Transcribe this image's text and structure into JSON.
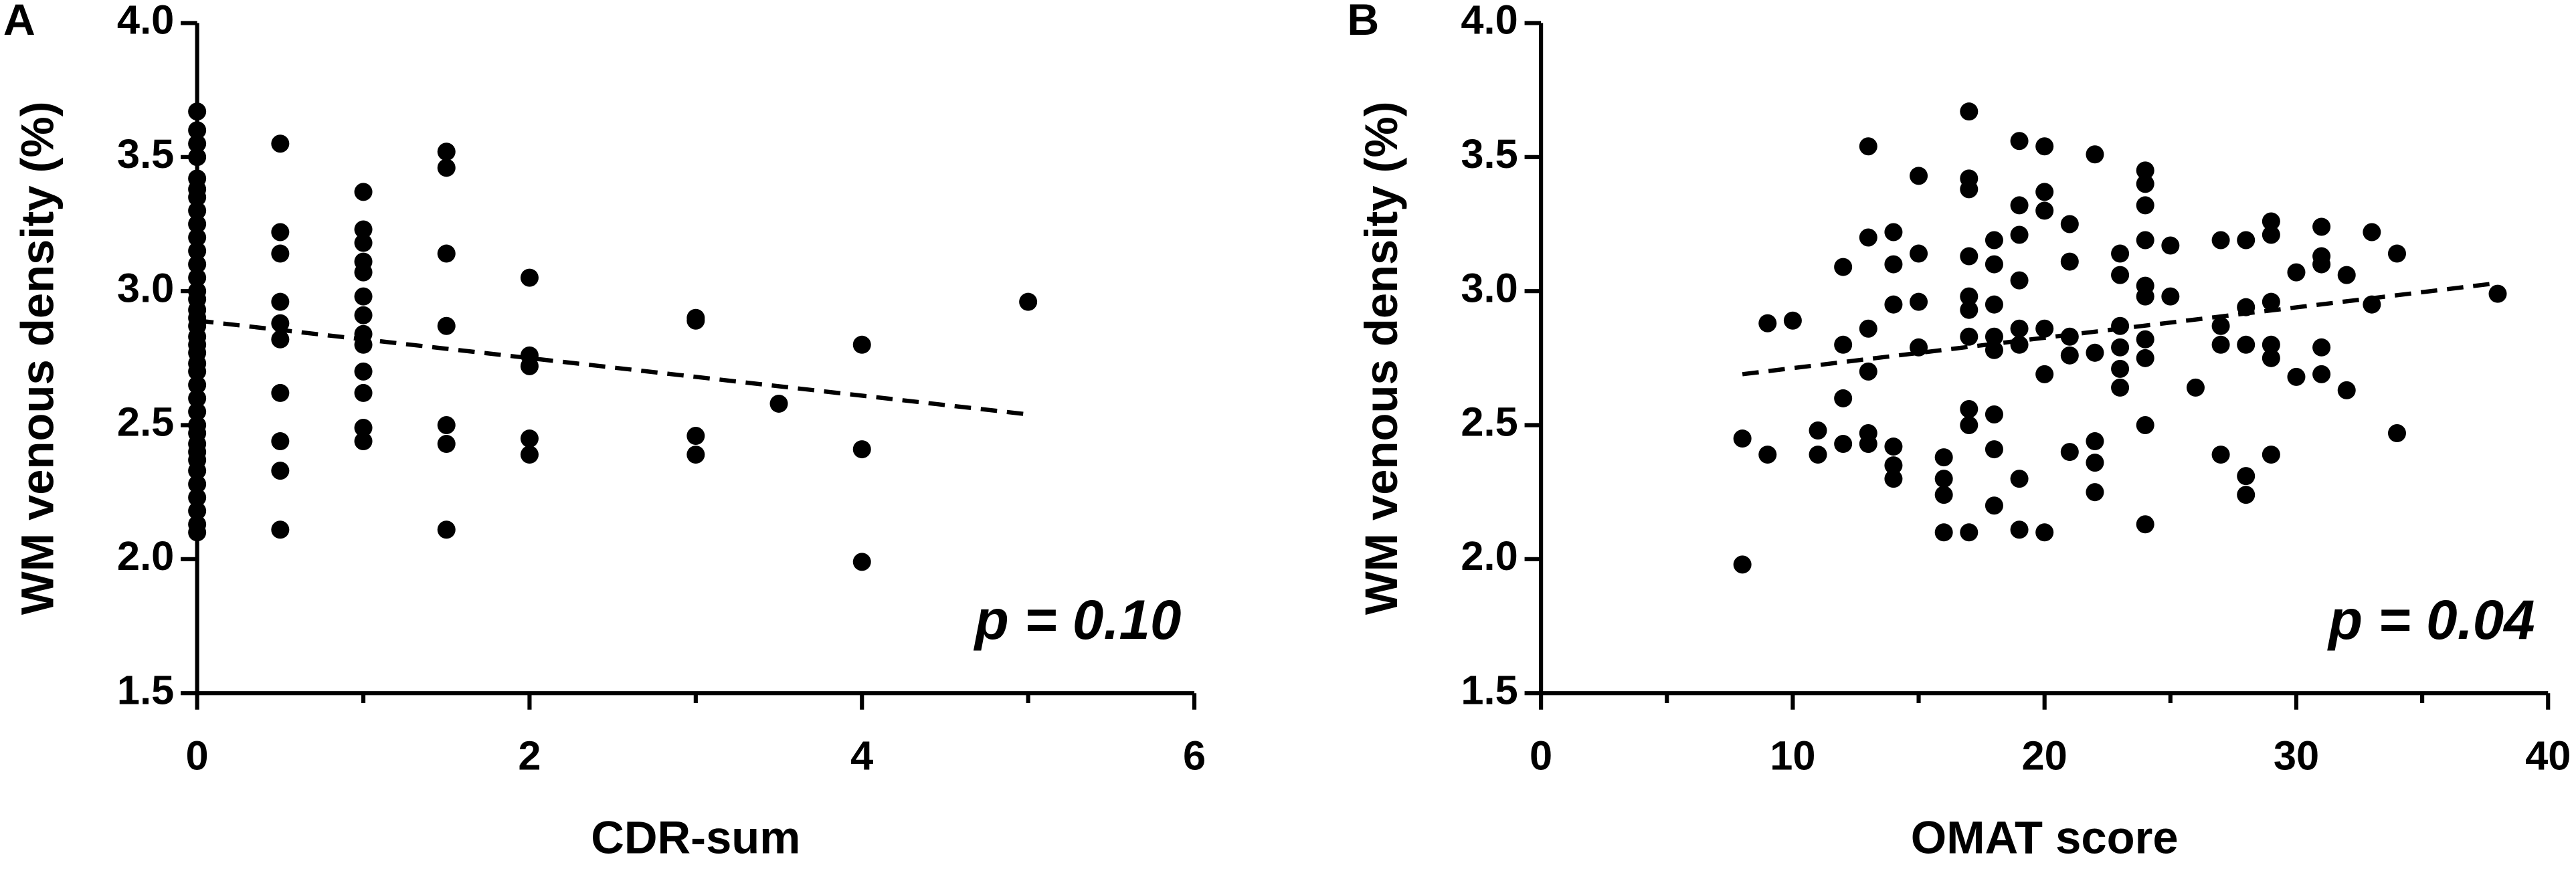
{
  "chart_data": [
    {
      "type": "scatter",
      "panel_label": "A",
      "x_label": "CDR-sum",
      "y_label": "WM venous density (%)",
      "annotation": "p = 0.10",
      "color": "#000000",
      "trendline_style": "dashed",
      "xlim": [
        0,
        6
      ],
      "xticks": [
        0,
        2,
        4,
        6
      ],
      "xminor_ticks": [
        1,
        3,
        5
      ],
      "ylim": [
        1.5,
        4
      ],
      "yticks": [
        1.5,
        {
          "value": 2,
          "label": "2.0"
        },
        2.5,
        {
          "value": 3,
          "label": "3.0"
        },
        3.5,
        {
          "value": 4,
          "label": "4.0"
        }
      ],
      "x": [
        0,
        0,
        0,
        0,
        0,
        0,
        0,
        0,
        0,
        0,
        0,
        0,
        0,
        0,
        0,
        0,
        0,
        0,
        0,
        0,
        0,
        0,
        0,
        0,
        0,
        0,
        0,
        0,
        0,
        0,
        0,
        0,
        0,
        0,
        0,
        0,
        0,
        0.5,
        0.5,
        0.5,
        0.5,
        0.5,
        0.5,
        0.5,
        0.5,
        0.5,
        0.5,
        1,
        1,
        1,
        1,
        1,
        1,
        1,
        1,
        1,
        1,
        1,
        1,
        1,
        1.5,
        1.5,
        1.5,
        1.5,
        1.5,
        1.5,
        1.5,
        2,
        2,
        2,
        2,
        2,
        3,
        3,
        3,
        3,
        3.5,
        4,
        4,
        4,
        5
      ],
      "values": [
        3.67,
        3.6,
        3.55,
        3.5,
        3.42,
        3.38,
        3.35,
        3.3,
        3.25,
        3.2,
        3.15,
        3.1,
        3.05,
        3.0,
        2.97,
        2.93,
        2.9,
        2.87,
        2.83,
        2.8,
        2.77,
        2.73,
        2.7,
        2.65,
        2.6,
        2.55,
        2.5,
        2.47,
        2.43,
        2.4,
        2.37,
        2.33,
        2.28,
        2.23,
        2.18,
        2.13,
        2.1,
        3.55,
        3.22,
        3.14,
        2.96,
        2.88,
        2.82,
        2.62,
        2.44,
        2.33,
        2.11,
        3.37,
        3.23,
        3.18,
        3.11,
        3.07,
        2.98,
        2.91,
        2.84,
        2.8,
        2.7,
        2.62,
        2.49,
        2.44,
        3.52,
        3.46,
        3.14,
        2.87,
        2.5,
        2.43,
        2.11,
        3.05,
        2.76,
        2.72,
        2.45,
        2.39,
        2.9,
        2.89,
        2.46,
        2.39,
        2.58,
        2.8,
        2.41,
        1.99,
        2.96
      ],
      "trendline": {
        "x": [
          0,
          5
        ],
        "values": [
          2.89,
          2.54
        ]
      }
    },
    {
      "type": "scatter",
      "panel_label": "B",
      "x_label": "OMAT score",
      "y_label": "WM venous density (%)",
      "annotation": "p = 0.04",
      "color": "#000000",
      "trendline_style": "dashed",
      "xlim": [
        0,
        40
      ],
      "xticks": [
        0,
        10,
        20,
        30,
        40
      ],
      "xminor_ticks": [
        5,
        15,
        25,
        35
      ],
      "ylim": [
        1.5,
        4
      ],
      "yticks": [
        1.5,
        {
          "value": 2,
          "label": "2.0"
        },
        2.5,
        {
          "value": 3,
          "label": "3.0"
        },
        3.5,
        {
          "value": 4,
          "label": "4.0"
        }
      ],
      "x": [
        8,
        8,
        9,
        9,
        10,
        11,
        11,
        12,
        12,
        12,
        12,
        13,
        13,
        13,
        13,
        13,
        13,
        14,
        14,
        14,
        14,
        14,
        14,
        15,
        15,
        15,
        15,
        16,
        16,
        16,
        16,
        17,
        17,
        17,
        17,
        17,
        17,
        17,
        17,
        17,
        17,
        18,
        18,
        18,
        18,
        18,
        18,
        18,
        18,
        19,
        19,
        19,
        19,
        19,
        19,
        19,
        19,
        20,
        20,
        20,
        20,
        20,
        20,
        21,
        21,
        21,
        21,
        21,
        22,
        22,
        22,
        22,
        22,
        23,
        23,
        23,
        23,
        23,
        23,
        24,
        24,
        24,
        24,
        24,
        24,
        24,
        24,
        24,
        24,
        25,
        25,
        26,
        27,
        27,
        27,
        27,
        28,
        28,
        28,
        28,
        28,
        29,
        29,
        29,
        29,
        29,
        29,
        30,
        30,
        31,
        31,
        31,
        31,
        31,
        32,
        32,
        33,
        33,
        34,
        34,
        38
      ],
      "values": [
        2.45,
        1.98,
        2.88,
        2.39,
        2.89,
        2.48,
        2.39,
        3.09,
        2.8,
        2.6,
        2.43,
        3.54,
        3.2,
        2.86,
        2.7,
        2.47,
        2.43,
        3.22,
        3.1,
        2.95,
        2.42,
        2.35,
        2.3,
        3.43,
        3.14,
        2.96,
        2.79,
        2.38,
        2.3,
        2.24,
        2.1,
        3.67,
        3.42,
        3.38,
        3.13,
        2.98,
        2.93,
        2.83,
        2.56,
        2.5,
        2.1,
        3.19,
        3.1,
        2.95,
        2.83,
        2.78,
        2.54,
        2.41,
        2.2,
        3.56,
        3.32,
        3.21,
        3.04,
        2.86,
        2.8,
        2.3,
        2.11,
        3.54,
        3.37,
        3.3,
        2.86,
        2.69,
        2.1,
        3.25,
        3.11,
        2.83,
        2.76,
        2.4,
        3.51,
        2.77,
        2.44,
        2.36,
        2.25,
        3.14,
        3.06,
        2.87,
        2.79,
        2.71,
        2.64,
        3.45,
        3.4,
        3.32,
        3.19,
        3.02,
        2.98,
        2.82,
        2.75,
        2.5,
        2.13,
        3.17,
        2.98,
        2.64,
        3.19,
        2.87,
        2.8,
        2.39,
        3.19,
        2.94,
        2.8,
        2.31,
        2.24,
        3.26,
        3.21,
        2.96,
        2.8,
        2.75,
        2.39,
        3.07,
        2.68,
        3.24,
        3.13,
        3.1,
        2.79,
        2.69,
        3.06,
        2.63,
        3.22,
        2.95,
        3.14,
        2.47,
        2.99
      ],
      "trendline": {
        "x": [
          8,
          38
        ],
        "values": [
          2.69,
          3.03
        ]
      }
    }
  ]
}
